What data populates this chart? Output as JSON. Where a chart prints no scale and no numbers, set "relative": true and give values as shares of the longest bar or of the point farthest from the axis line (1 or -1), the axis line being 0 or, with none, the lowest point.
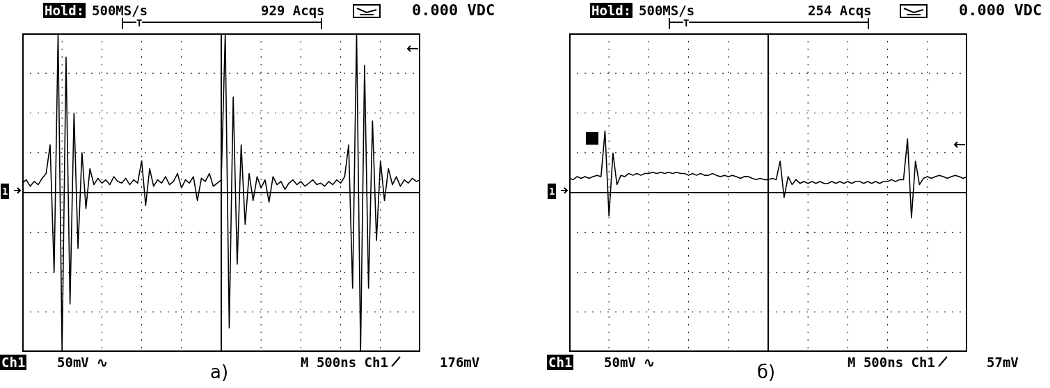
{
  "chart_data": [
    {
      "type": "line",
      "title": "а)",
      "relative": true,
      "grid": true,
      "legend": false,
      "marker": "none",
      "line_style": "solid",
      "annotations": [
        "Hold:",
        "500MS/s",
        "929 Acqs",
        "0.000 VDC",
        "T",
        "1",
        "Ch1",
        "50mV ∿",
        "M 500ns Ch1",
        "176mV"
      ],
      "categories": [
        null,
        null,
        null,
        null,
        null,
        null,
        null,
        null,
        null,
        null,
        null,
        null,
        null,
        null,
        null,
        null,
        null,
        null,
        null,
        null,
        null,
        null,
        null,
        null,
        null,
        null,
        null,
        null,
        null,
        null,
        null,
        null,
        null,
        null,
        null,
        null,
        null,
        null,
        null,
        null,
        null,
        null,
        null,
        null,
        null,
        null,
        null,
        null,
        null,
        null,
        null,
        null,
        null,
        null,
        null,
        null,
        null,
        null,
        null,
        null,
        null,
        null,
        null,
        null,
        null,
        null,
        null,
        null,
        null,
        null,
        null,
        null,
        null,
        null,
        null,
        null,
        null,
        null,
        null,
        null,
        null,
        null,
        null,
        null,
        null,
        null,
        null,
        null,
        null,
        null,
        null,
        null,
        null,
        null,
        null,
        null,
        null,
        null,
        null,
        null,
        null
      ],
      "series": [
        {
          "color": "#000000",
          "values": [
            0.06,
            0.08,
            0.04,
            0.07,
            0.05,
            0.09,
            0.12,
            0.3,
            -0.5,
            1,
            -1,
            0.85,
            -0.7,
            0.5,
            -0.35,
            0.25,
            -0.1,
            0.15,
            0.05,
            0.09,
            0.06,
            0.08,
            0.05,
            0.1,
            0.07,
            0.06,
            0.09,
            0.05,
            0.08,
            0.06,
            0.2,
            -0.08,
            0.15,
            0.04,
            0.08,
            0.06,
            0.1,
            0.05,
            0.07,
            0.12,
            0.03,
            0.08,
            0.06,
            0.1,
            -0.05,
            0.09,
            0.07,
            0.12,
            0.04,
            0.06,
            0.08,
            1,
            -0.85,
            0.6,
            -0.45,
            0.3,
            -0.2,
            0.12,
            -0.05,
            0.1,
            0.03,
            0.08,
            -0.06,
            0.1,
            0.05,
            0.07,
            0.02,
            0.06,
            0.08,
            0.05,
            0.07,
            0.04,
            0.06,
            0.08,
            0.05,
            0.06,
            0.04,
            0.07,
            0.05,
            0.08,
            0.06,
            0.1,
            0.3,
            -0.6,
            1,
            -1,
            0.8,
            -0.6,
            0.45,
            -0.3,
            0.2,
            -0.05,
            0.15,
            0.05,
            0.1,
            0.04,
            0.08,
            0.06,
            0.09,
            0.07,
            0.08
          ]
        }
      ]
    },
    {
      "type": "line",
      "title": "б)",
      "relative": true,
      "grid": true,
      "legend": false,
      "marker": "none",
      "line_style": "solid",
      "annotations": [
        "Hold:",
        "500MS/s",
        "254 Acqs",
        "0.000 VDC",
        "T",
        "1",
        "Ch1",
        "50mV ∿",
        "M 500ns Ch1",
        "57mV"
      ],
      "categories": [
        null,
        null,
        null,
        null,
        null,
        null,
        null,
        null,
        null,
        null,
        null,
        null,
        null,
        null,
        null,
        null,
        null,
        null,
        null,
        null,
        null,
        null,
        null,
        null,
        null,
        null,
        null,
        null,
        null,
        null,
        null,
        null,
        null,
        null,
        null,
        null,
        null,
        null,
        null,
        null,
        null,
        null,
        null,
        null,
        null,
        null,
        null,
        null,
        null,
        null,
        null,
        null,
        null,
        null,
        null,
        null,
        null,
        null,
        null,
        null,
        null,
        null,
        null,
        null,
        null,
        null,
        null,
        null,
        null,
        null,
        null,
        null,
        null,
        null,
        null,
        null,
        null,
        null,
        null,
        null,
        null,
        null,
        null,
        null,
        null,
        null,
        null,
        null,
        null,
        null,
        null,
        null,
        null,
        null,
        null,
        null,
        null,
        null,
        null,
        null,
        null
      ],
      "series": [
        {
          "color": "#000000",
          "values": [
            0.23,
            0.21,
            0.26,
            0.23,
            0.26,
            0.23,
            0.26,
            0.28,
            0.26,
            1,
            -0.38,
            0.64,
            0.13,
            0.28,
            0.26,
            0.31,
            0.28,
            0.31,
            0.28,
            0.31,
            0.31,
            0.33,
            0.31,
            0.33,
            0.31,
            0.33,
            0.31,
            0.33,
            0.31,
            0.31,
            0.28,
            0.31,
            0.28,
            0.31,
            0.28,
            0.28,
            0.31,
            0.28,
            0.26,
            0.28,
            0.26,
            0.28,
            0.26,
            0.23,
            0.26,
            0.26,
            0.23,
            0.21,
            0.23,
            0.21,
            0.21,
            0.23,
            0.21,
            0.51,
            -0.08,
            0.26,
            0.13,
            0.21,
            0.15,
            0.18,
            0.15,
            0.18,
            0.15,
            0.18,
            0.15,
            0.15,
            0.18,
            0.15,
            0.18,
            0.15,
            0.18,
            0.15,
            0.18,
            0.18,
            0.15,
            0.18,
            0.15,
            0.18,
            0.15,
            0.18,
            0.18,
            0.21,
            0.18,
            0.21,
            0.21,
            0.87,
            -0.41,
            0.51,
            0.13,
            0.23,
            0.26,
            0.23,
            0.26,
            0.28,
            0.26,
            0.23,
            0.26,
            0.28,
            0.26,
            0.23,
            0.26
          ]
        }
      ]
    }
  ]
}
